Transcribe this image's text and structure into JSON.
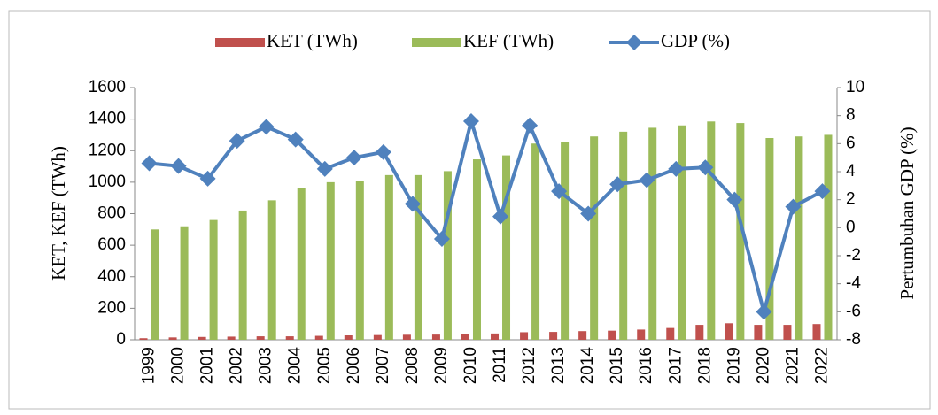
{
  "chart_data": {
    "type": "bar-line",
    "categories": [
      "1999",
      "2000",
      "2001",
      "2002",
      "2003",
      "2004",
      "2005",
      "2006",
      "2007",
      "2008",
      "2009",
      "2010",
      "2011",
      "2012",
      "2013",
      "2014",
      "2015",
      "2016",
      "2017",
      "2018",
      "2019",
      "2020",
      "2021",
      "2022"
    ],
    "y_label": "KET, KEF (TWh)",
    "y2_label": "Pertumbuhan GDP (%)",
    "ylim": [
      0,
      1600
    ],
    "yticks": [
      0,
      200,
      400,
      600,
      800,
      1000,
      1200,
      1400,
      1600
    ],
    "y2lim": [
      -8,
      10
    ],
    "y2ticks": [
      -8,
      -6,
      -4,
      -2,
      0,
      2,
      4,
      6,
      8,
      10
    ],
    "legend": "top",
    "series": [
      {
        "name": "KET (TWh)",
        "color": "#c0504d",
        "kind": "bar",
        "values": [
          10,
          15,
          18,
          20,
          22,
          22,
          25,
          28,
          30,
          32,
          33,
          35,
          40,
          48,
          50,
          55,
          58,
          65,
          75,
          95,
          105,
          95,
          95,
          100
        ]
      },
      {
        "name": "KEF (TWh)",
        "color": "#9bbb59",
        "kind": "bar",
        "values": [
          700,
          720,
          760,
          820,
          885,
          965,
          1000,
          1010,
          1045,
          1045,
          1070,
          1145,
          1170,
          1245,
          1255,
          1290,
          1320,
          1345,
          1360,
          1385,
          1375,
          1280,
          1290,
          1300
        ]
      },
      {
        "name": "GDP (%)",
        "color": "#4f81bd",
        "kind": "line",
        "axis": "y2",
        "values": [
          4.6,
          4.4,
          3.5,
          6.2,
          7.2,
          6.3,
          4.2,
          5.0,
          5.4,
          1.7,
          -0.8,
          7.6,
          0.8,
          7.3,
          2.6,
          1.0,
          3.1,
          3.4,
          4.2,
          4.3,
          2.0,
          -6.0,
          1.5,
          2.6
        ]
      }
    ]
  }
}
